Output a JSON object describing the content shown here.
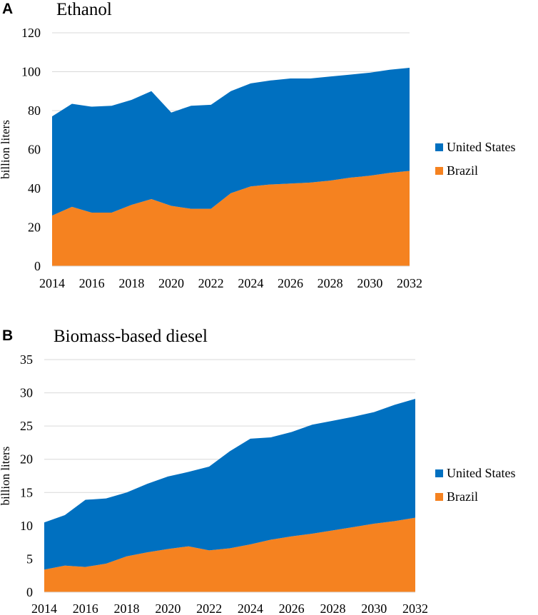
{
  "colors": {
    "us": "#0070C0",
    "brazil": "#F58220",
    "grid": "#d9d9d9"
  },
  "chart_data": [
    {
      "panel": "A",
      "type": "area",
      "stacked": true,
      "title": "Ethanol",
      "xlabel": "",
      "ylabel": "billion liters",
      "x": [
        2014,
        2015,
        2016,
        2017,
        2018,
        2019,
        2020,
        2021,
        2022,
        2023,
        2024,
        2025,
        2026,
        2027,
        2028,
        2029,
        2030,
        2031,
        2032
      ],
      "xticks": [
        "2014",
        "2016",
        "2018",
        "2020",
        "2022",
        "2024",
        "2026",
        "2028",
        "2030",
        "2032"
      ],
      "xlim": [
        2014,
        2032
      ],
      "ylim": [
        0,
        120
      ],
      "yticks": [
        "0",
        "20",
        "40",
        "60",
        "80",
        "100",
        "120"
      ],
      "legend_position": "right",
      "series": [
        {
          "name": "Brazil",
          "values": [
            26,
            30.5,
            27.5,
            27.5,
            31.5,
            34.5,
            31,
            29.5,
            29.5,
            37.5,
            41,
            42,
            42.5,
            43,
            44,
            45.5,
            46.5,
            48,
            49
          ]
        },
        {
          "name": "United States",
          "values": [
            51,
            53,
            54.5,
            55,
            54,
            55.5,
            48,
            53,
            53.5,
            52.5,
            53,
            53.5,
            54,
            53.5,
            53.5,
            53,
            53,
            53,
            53
          ]
        }
      ],
      "totals": [
        77,
        83.5,
        82,
        82.5,
        85.5,
        90,
        79,
        82.5,
        83,
        90,
        94,
        95.5,
        96.5,
        96.5,
        97.5,
        98.5,
        99.5,
        101,
        102
      ]
    },
    {
      "panel": "B",
      "type": "area",
      "stacked": true,
      "title": "Biomass-based diesel",
      "xlabel": "",
      "ylabel": "billion liters",
      "x": [
        2014,
        2015,
        2016,
        2017,
        2018,
        2019,
        2020,
        2021,
        2022,
        2023,
        2024,
        2025,
        2026,
        2027,
        2028,
        2029,
        2030,
        2031,
        2032
      ],
      "xticks": [
        "2014",
        "2016",
        "2018",
        "2020",
        "2022",
        "2024",
        "2026",
        "2028",
        "2030",
        "2032"
      ],
      "xlim": [
        2014,
        2032
      ],
      "ylim": [
        0,
        35
      ],
      "yticks": [
        "0",
        "5",
        "10",
        "15",
        "20",
        "25",
        "30",
        "35"
      ],
      "legend_position": "right",
      "series": [
        {
          "name": "Brazil",
          "values": [
            3.4,
            4,
            3.8,
            4.3,
            5.4,
            6,
            6.5,
            6.9,
            6.3,
            6.6,
            7.2,
            7.9,
            8.4,
            8.8,
            9.3,
            9.8,
            10.3,
            10.7,
            11.2
          ]
        },
        {
          "name": "United States",
          "values": [
            7.1,
            7.6,
            10.1,
            9.8,
            9.6,
            10.3,
            10.9,
            11.2,
            12.6,
            14.6,
            15.9,
            15.4,
            15.7,
            16.4,
            16.5,
            16.6,
            16.8,
            17.5,
            17.9
          ]
        }
      ],
      "totals": [
        10.5,
        11.6,
        13.9,
        14.1,
        15,
        16.3,
        17.4,
        18.1,
        18.9,
        21.2,
        23.1,
        23.3,
        24.1,
        25.2,
        25.8,
        26.4,
        27.1,
        28.2,
        29.1
      ]
    }
  ]
}
